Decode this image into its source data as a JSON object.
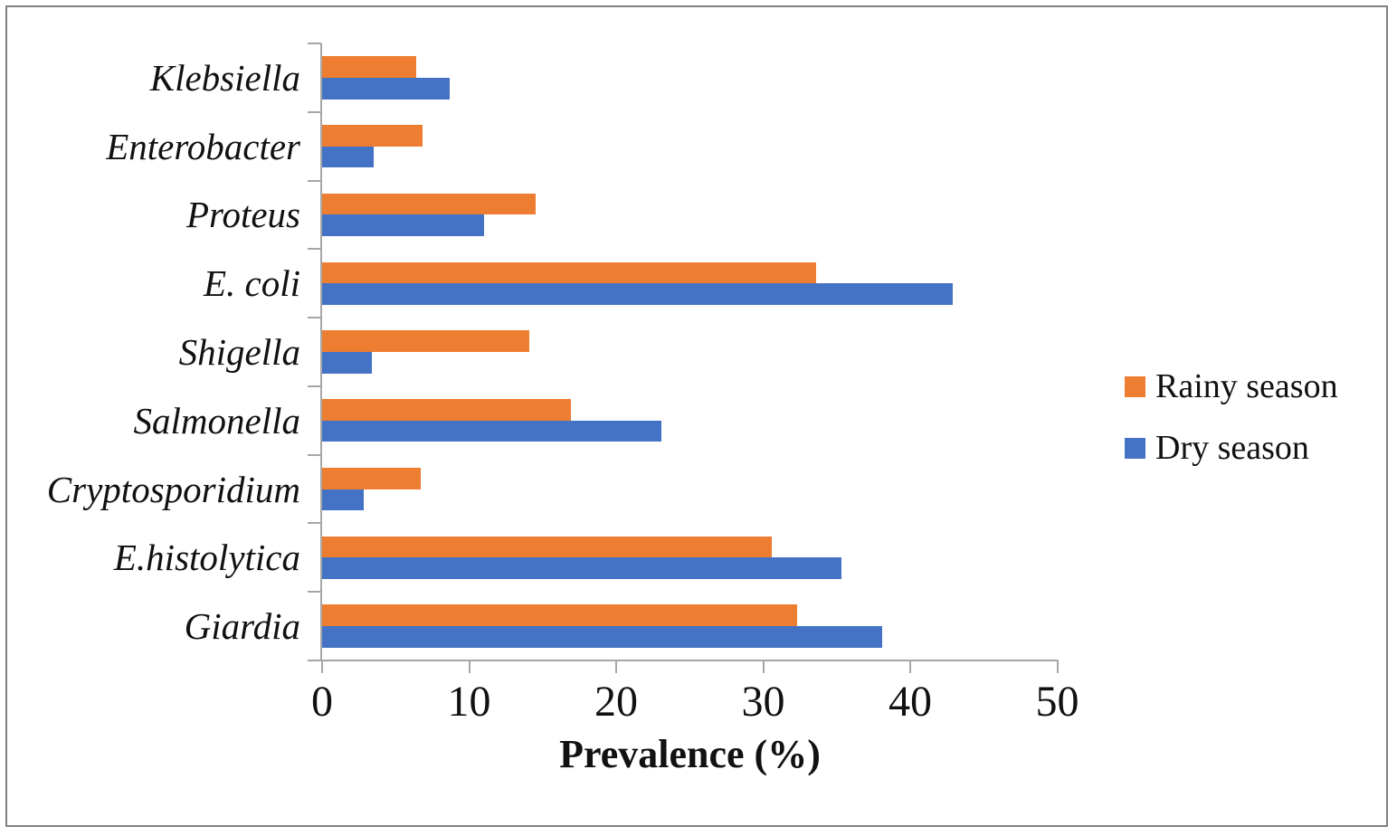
{
  "figure": {
    "background": "#ffffff",
    "border_color": "#818181",
    "axis_color": "#a6a6a6",
    "text_color": "#111111"
  },
  "chart_data": {
    "type": "bar",
    "orientation": "horizontal",
    "title": "",
    "xlabel": "Prevalence (%)",
    "ylabel": "",
    "xlim": [
      0,
      50
    ],
    "xticks": [
      "0",
      "10",
      "20",
      "30",
      "40",
      "50"
    ],
    "grid": false,
    "legend_position": "right",
    "categories": [
      "Klebsiella",
      "Enterobacter",
      "Proteus",
      "E. coli",
      "Shigella",
      "Salmonella",
      "Cryptosporidium",
      "E.histolytica",
      "Giardia"
    ],
    "series": [
      {
        "name": "Rainy season",
        "color": "#ED7D31",
        "values": [
          6.4,
          6.8,
          14.5,
          33.6,
          14.1,
          16.9,
          6.7,
          30.6,
          32.3
        ]
      },
      {
        "name": "Dry season",
        "color": "#4472C4",
        "values": [
          8.7,
          3.5,
          11.0,
          42.9,
          3.4,
          23.1,
          2.8,
          35.3,
          38.1
        ]
      }
    ]
  }
}
